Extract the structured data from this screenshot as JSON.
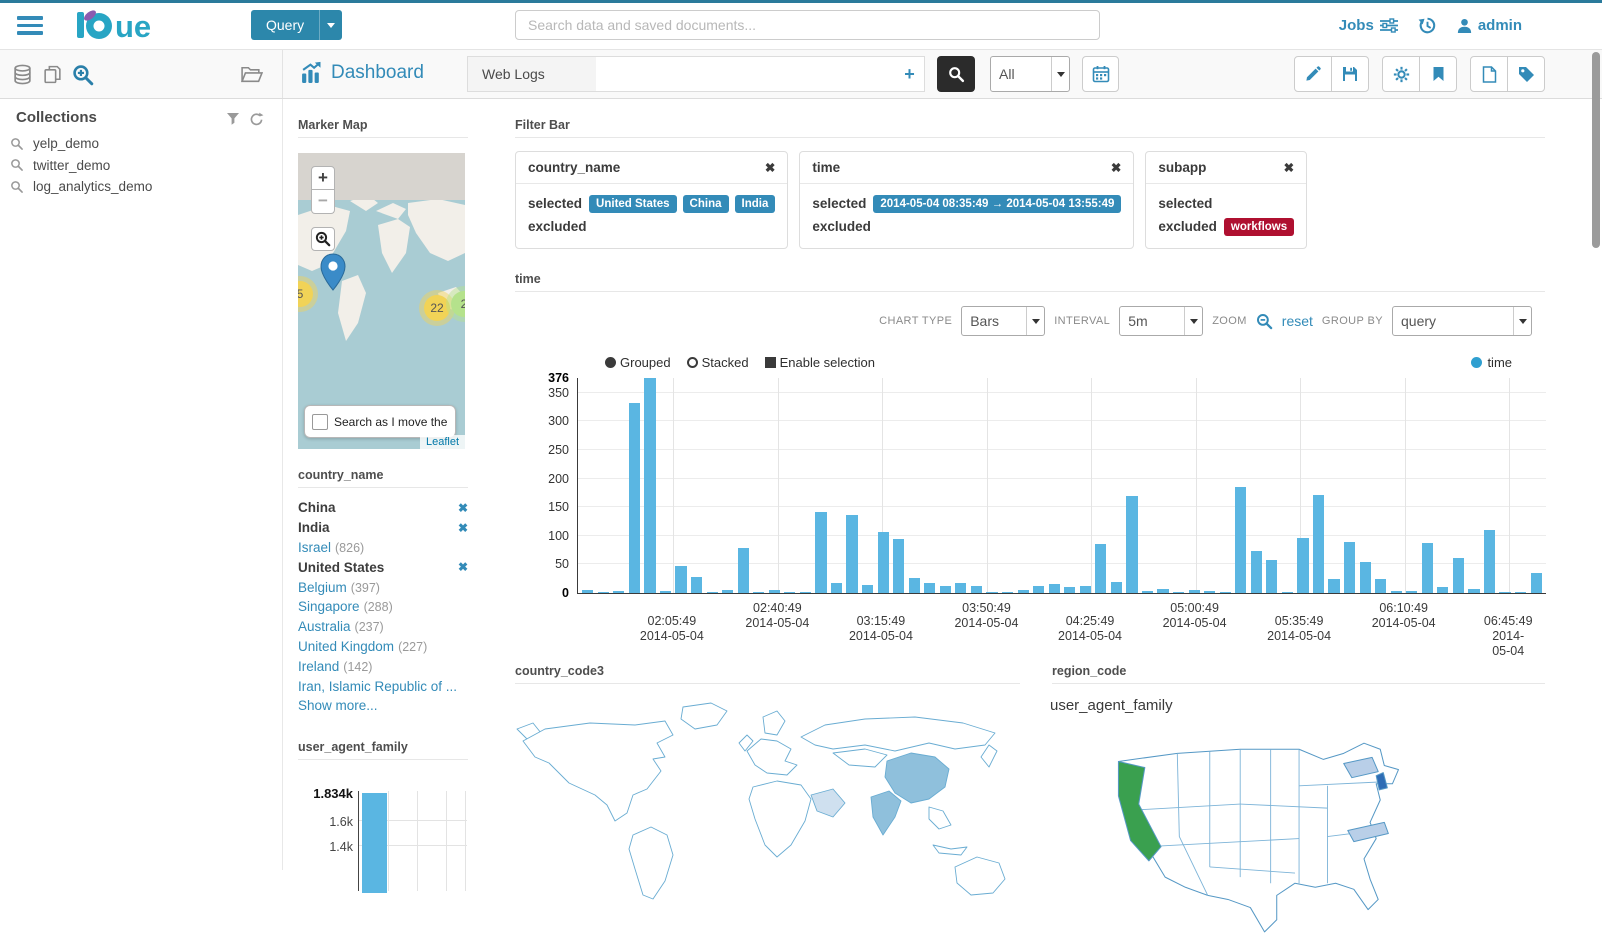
{
  "topnav": {
    "logo_text": "hue",
    "query_label": "Query",
    "search_placeholder": "Search data and saved documents...",
    "jobs_label": "Jobs",
    "user_label": "admin"
  },
  "toolbar": {
    "title": "Dashboard",
    "collection_name": "Web Logs",
    "dashboard_search_value": "",
    "plus_label": "+",
    "scope_value": "All",
    "action_icons": [
      "edit",
      "save",
      "settings",
      "bookmark",
      "new-document",
      "tags"
    ]
  },
  "sidebar": {
    "collections_title": "Collections",
    "items": [
      {
        "label": "yelp_demo"
      },
      {
        "label": "twitter_demo"
      },
      {
        "label": "log_analytics_demo"
      }
    ]
  },
  "marker_map": {
    "title": "Marker Map",
    "zoom_in_label": "+",
    "zoom_out_label": "−",
    "clusters": [
      {
        "count": "5",
        "color": "#f1d357"
      },
      {
        "count": "22",
        "color": "#f1d357"
      },
      {
        "count": "2",
        "color": "#b5e28c"
      }
    ],
    "search_checkbox_label": "Search as I move the map",
    "attribution": "Leaflet"
  },
  "filter_bar": {
    "title": "Filter Bar",
    "selected_label": "selected",
    "excluded_label": "excluded",
    "filters": [
      {
        "field": "country_name",
        "selected": [
          "United States",
          "China",
          "India"
        ],
        "excluded": []
      },
      {
        "field": "time",
        "selected": [
          "2014-05-04 08:35:49 → 2014-05-04 13:55:49"
        ],
        "excluded": []
      },
      {
        "field": "subapp",
        "selected": [],
        "excluded": [
          "workflows"
        ]
      }
    ]
  },
  "time_widget": {
    "title": "time",
    "chart_type_label": "CHART TYPE",
    "chart_type_value": "Bars",
    "interval_label": "INTERVAL",
    "interval_value": "5m",
    "zoom_label": "ZOOM",
    "reset_label": "reset",
    "group_by_label": "GROUP BY",
    "group_by_value": "query",
    "toggle_grouped": "Grouped",
    "toggle_stacked": "Stacked",
    "toggle_selection": "Enable selection",
    "legend_series": "time"
  },
  "country_name_widget": {
    "title": "country_name",
    "items": [
      {
        "label": "China",
        "selected": true
      },
      {
        "label": "India",
        "selected": true
      },
      {
        "label": "Israel",
        "count": "826"
      },
      {
        "label": "United States",
        "selected": true
      },
      {
        "label": "Belgium",
        "count": "397"
      },
      {
        "label": "Singapore",
        "count": "288"
      },
      {
        "label": "Australia",
        "count": "237"
      },
      {
        "label": "United Kingdom",
        "count": "227"
      },
      {
        "label": "Ireland",
        "count": "142"
      },
      {
        "label": "Iran, Islamic Republic of ..."
      }
    ],
    "show_more_label": "Show more..."
  },
  "user_agent_widget": {
    "title": "user_agent_family"
  },
  "country_code3_widget": {
    "title": "country_code3"
  },
  "region_code_widget": {
    "title": "region_code",
    "sub_label": "user_agent_family"
  },
  "colors": {
    "primary_blue": "#338bb8",
    "bar_blue": "#5ab6e2",
    "pill_blue": "#338bb8",
    "excluded_red": "#af1030",
    "map_country_selected": "#8fc0dc",
    "map_country_light": "#cfe0ef",
    "us_state_green": "#3aa04f",
    "us_state_light_blue": "#b9cfe8",
    "us_state_dark_blue": "#2f6db5"
  },
  "chart_data": [
    {
      "type": "bar",
      "title": "time",
      "xlabel": "",
      "ylabel": "",
      "interval": "5m",
      "grid": true,
      "legend_position": "top-right",
      "ylim": [
        0,
        376
      ],
      "y_ticks": [
        0,
        50,
        100,
        150,
        200,
        250,
        300,
        350,
        376
      ],
      "series": [
        {
          "name": "time",
          "values": [
            6,
            2,
            3,
            333,
            376,
            3,
            47,
            28,
            2,
            5,
            78,
            2,
            5,
            2,
            2,
            142,
            17,
            137,
            14,
            107,
            94,
            27,
            18,
            12,
            17,
            12,
            1,
            2,
            5,
            12,
            15,
            10,
            12,
            85,
            20,
            170,
            3,
            7,
            2,
            6,
            4,
            1,
            186,
            73,
            58,
            2,
            97,
            172,
            24,
            90,
            54,
            24,
            4,
            4,
            88,
            11,
            61,
            7,
            110,
            1,
            2,
            35
          ]
        }
      ],
      "x_ticks": [
        {
          "time": "02:05:49",
          "date": "2014-05-04",
          "pct": 9.8
        },
        {
          "time": "02:40:49",
          "date": "2014-05-04",
          "pct": 20.7
        },
        {
          "time": "03:15:49",
          "date": "2014-05-04",
          "pct": 31.4
        },
        {
          "time": "03:50:49",
          "date": "2014-05-04",
          "pct": 42.3
        },
        {
          "time": "04:25:49",
          "date": "2014-05-04",
          "pct": 53.0
        },
        {
          "time": "05:00:49",
          "date": "2014-05-04",
          "pct": 63.8
        },
        {
          "time": "05:35:49",
          "date": "2014-05-04",
          "pct": 74.6
        },
        {
          "time": "06:10:49",
          "date": "2014-05-04",
          "pct": 85.4
        },
        {
          "time": "06:45:49",
          "date": "2014-05-04",
          "pct": 96.2
        }
      ]
    },
    {
      "type": "bar",
      "title": "user_agent_family",
      "ylim_top": 1834,
      "y_ticks": [
        {
          "label": "1.834k",
          "value": 1834
        },
        {
          "label": "1.6k",
          "value": 1600
        },
        {
          "label": "1.4k",
          "value": 1400
        }
      ],
      "series": [
        {
          "name": "user_agent_family",
          "values": [
            1834
          ]
        }
      ]
    }
  ]
}
